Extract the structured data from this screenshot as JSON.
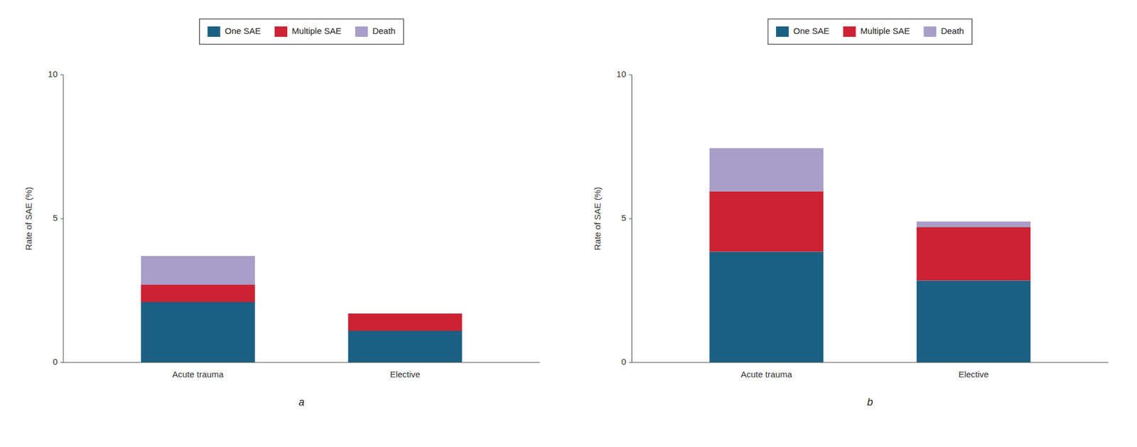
{
  "chart_data": [
    {
      "type": "bar",
      "stacked": true,
      "title": "a",
      "ylabel": "Rate of SAE (%)",
      "categories": [
        "Acute trauma",
        "Elective"
      ],
      "series": [
        {
          "name": "One SAE",
          "color": "#1b6083",
          "values": [
            2.1,
            1.1
          ]
        },
        {
          "name": "Multiple SAE",
          "color": "#cc2233",
          "values": [
            0.6,
            0.6
          ]
        },
        {
          "name": "Death",
          "color": "#a89ec8",
          "values": [
            1.0,
            0.0
          ]
        }
      ],
      "ylim": [
        0,
        10
      ],
      "yticks": [
        0,
        5,
        10
      ],
      "grid": false,
      "legend": "top"
    },
    {
      "type": "bar",
      "stacked": true,
      "title": "b",
      "ylabel": "Rate of SAE (%)",
      "categories": [
        "Acute trauma",
        "Elective"
      ],
      "series": [
        {
          "name": "One SAE",
          "color": "#1b6083",
          "values": [
            3.85,
            2.85
          ]
        },
        {
          "name": "Multiple SAE",
          "color": "#cc2233",
          "values": [
            2.1,
            1.85
          ]
        },
        {
          "name": "Death",
          "color": "#a89ec8",
          "values": [
            1.5,
            0.2
          ]
        }
      ],
      "ylim": [
        0,
        10
      ],
      "yticks": [
        0,
        5,
        10
      ],
      "grid": false,
      "legend": "top"
    }
  ]
}
